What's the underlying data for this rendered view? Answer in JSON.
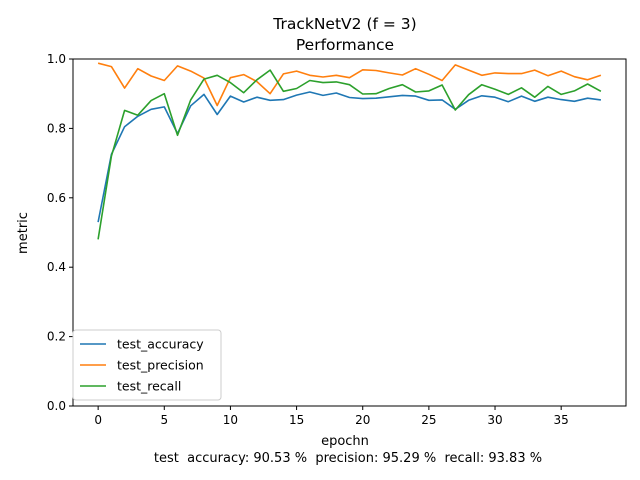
{
  "chart_data": {
    "type": "line",
    "title": "TrackNetV2 (f = 3)",
    "subtitle": "Performance",
    "xlabel": "epochn",
    "ylabel": "metric",
    "footer": "test  accuracy: 90.53 %  precision: 95.29 %  recall: 93.83 %",
    "xlim": [
      -1.9,
      39.9
    ],
    "ylim": [
      0,
      1.0
    ],
    "xticks": [
      0,
      5,
      10,
      15,
      20,
      25,
      30,
      35
    ],
    "yticks": [
      0.0,
      0.2,
      0.4,
      0.6,
      0.8,
      1.0
    ],
    "xtick_labels": [
      "0",
      "5",
      "10",
      "15",
      "20",
      "25",
      "30",
      "35"
    ],
    "ytick_labels": [
      "0.0",
      "0.2",
      "0.4",
      "0.6",
      "0.8",
      "1.0"
    ],
    "grid": false,
    "legend": "bottom-left",
    "x": [
      0,
      1,
      2,
      3,
      4,
      5,
      6,
      7,
      8,
      9,
      10,
      11,
      12,
      13,
      14,
      15,
      16,
      17,
      18,
      19,
      20,
      21,
      22,
      23,
      24,
      25,
      26,
      27,
      28,
      29,
      30,
      31,
      32,
      33,
      34,
      35,
      36,
      37,
      38
    ],
    "series": [
      {
        "name": "test_accuracy",
        "color": "#1f77b4",
        "values": [
          0.53,
          0.725,
          0.805,
          0.835,
          0.855,
          0.862,
          0.785,
          0.865,
          0.898,
          0.84,
          0.893,
          0.876,
          0.89,
          0.881,
          0.883,
          0.896,
          0.905,
          0.895,
          0.902,
          0.889,
          0.886,
          0.887,
          0.891,
          0.895,
          0.893,
          0.881,
          0.882,
          0.855,
          0.881,
          0.894,
          0.89,
          0.877,
          0.893,
          0.878,
          0.89,
          0.883,
          0.878,
          0.887,
          0.882
        ]
      },
      {
        "name": "test_precision",
        "color": "#ff7f0e",
        "values": [
          0.988,
          0.978,
          0.916,
          0.972,
          0.951,
          0.938,
          0.98,
          0.965,
          0.945,
          0.866,
          0.946,
          0.955,
          0.935,
          0.9,
          0.957,
          0.965,
          0.953,
          0.948,
          0.953,
          0.946,
          0.969,
          0.967,
          0.96,
          0.954,
          0.972,
          0.956,
          0.938,
          0.983,
          0.968,
          0.953,
          0.96,
          0.958,
          0.958,
          0.968,
          0.952,
          0.965,
          0.949,
          0.94,
          0.953
        ]
      },
      {
        "name": "test_recall",
        "color": "#2ca02c",
        "values": [
          0.48,
          0.72,
          0.852,
          0.838,
          0.88,
          0.9,
          0.78,
          0.882,
          0.942,
          0.953,
          0.932,
          0.903,
          0.94,
          0.968,
          0.907,
          0.915,
          0.938,
          0.932,
          0.934,
          0.926,
          0.899,
          0.9,
          0.915,
          0.926,
          0.905,
          0.908,
          0.925,
          0.853,
          0.897,
          0.926,
          0.913,
          0.898,
          0.917,
          0.89,
          0.921,
          0.898,
          0.908,
          0.928,
          0.907
        ]
      }
    ]
  }
}
